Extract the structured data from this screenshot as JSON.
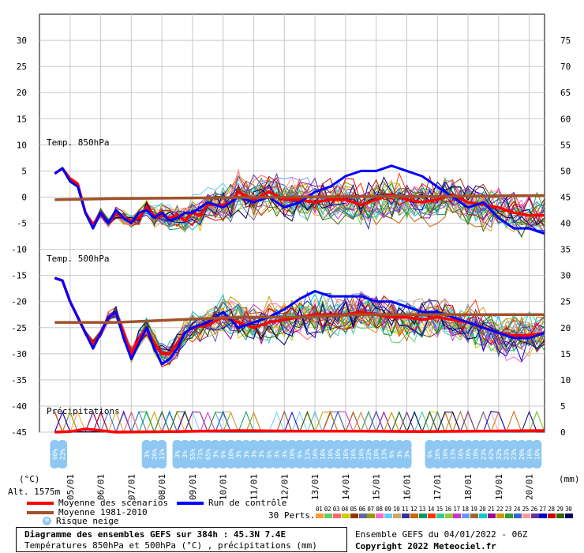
{
  "chart_data": {
    "type": "line",
    "title": "Diagramme des ensembles GEFS sur 384h : 45.3N 7.4E",
    "subtitle": "Températures 850hPa et 500hPa (°C) , précipitations (mm)",
    "left_axis": {
      "unit": "(°C)",
      "ticks": [
        30,
        25,
        20,
        15,
        10,
        5,
        0,
        -5,
        -10,
        -15,
        -20,
        -25,
        -30,
        -35,
        -40,
        -45
      ],
      "ylim": [
        -45,
        30
      ]
    },
    "right_axis": {
      "unit": "(mm)",
      "ticks": [
        75,
        70,
        65,
        60,
        55,
        50,
        45,
        40,
        35,
        30,
        25,
        20,
        15,
        10,
        5,
        0
      ]
    },
    "x_tick_labels": [
      "05/01",
      "06/01",
      "07/01",
      "08/01",
      "09/01",
      "10/01",
      "11/01",
      "12/01",
      "13/01",
      "14/01",
      "15/01",
      "16/01",
      "17/01",
      "18/01",
      "19/01",
      "20/01"
    ],
    "panel_labels": {
      "t850": "Temp. 850hPa",
      "t500": "Temp. 500hPa",
      "precip": "Précipitations"
    },
    "altitude": "Alt. 1575m",
    "series": [
      {
        "name": "Moyenne des scénarios",
        "color": "#ff0000",
        "panel": "t850",
        "x": [
          0,
          0.25,
          0.5,
          0.75,
          1,
          1.25,
          1.5,
          1.75,
          2,
          2.25,
          2.5,
          2.75,
          3,
          3.25,
          3.5,
          3.75,
          4,
          4.25,
          4.5,
          4.75,
          5,
          5.25,
          5.5,
          5.75,
          6,
          6.5,
          7,
          7.5,
          8,
          8.5,
          9,
          9.5,
          10,
          10.5,
          11,
          11.5,
          12,
          12.5,
          13,
          13.5,
          14,
          14.5,
          15,
          15.5,
          16
        ],
        "values": [
          4.5,
          5.5,
          3.5,
          2.5,
          -3,
          -5.5,
          -3,
          -5,
          -3,
          -4,
          -4.5,
          -4,
          -2,
          -4,
          -3.5,
          -4,
          -3.5,
          -4.5,
          -3,
          -3.5,
          -1.5,
          -1.5,
          -1.5,
          -1,
          1,
          -0.5,
          1,
          -0.5,
          -0.5,
          -1,
          -0.5,
          -0.5,
          -1.5,
          -0.5,
          0.5,
          -0.5,
          -1,
          -0.5,
          0.5,
          -1,
          -1.5,
          -2,
          -3,
          -3.5,
          -3.5
        ]
      },
      {
        "name": "Run de contrôle",
        "color": "#0000ff",
        "panel": "t850",
        "x": [
          0,
          0.25,
          0.5,
          0.75,
          1,
          1.25,
          1.5,
          1.75,
          2,
          2.25,
          2.5,
          2.75,
          3,
          3.25,
          3.5,
          3.75,
          4,
          4.25,
          4.5,
          4.75,
          5,
          5.5,
          6,
          6.5,
          7,
          7.5,
          8,
          8.5,
          9,
          9.5,
          10,
          10.5,
          11,
          11.5,
          12,
          12.5,
          13,
          13.5,
          14,
          14.5,
          15,
          15.5,
          16
        ],
        "values": [
          4.5,
          5.5,
          3,
          2,
          -3,
          -6,
          -3,
          -5,
          -2.5,
          -4,
          -5,
          -3,
          -2.5,
          -4,
          -3,
          -4.5,
          -4,
          -3,
          -3,
          -2,
          -1,
          -2,
          0,
          -1,
          0,
          -2,
          -1,
          1,
          2,
          4,
          5,
          5,
          6,
          5,
          4,
          2,
          0,
          -2,
          -1,
          -4,
          -6,
          -6,
          -7
        ]
      },
      {
        "name": "Moyenne 1981-2010",
        "color": "#a0522d",
        "panel": "t850",
        "x": [
          0,
          2,
          4,
          6,
          8,
          10,
          12,
          14,
          16
        ],
        "values": [
          -0.5,
          -0.3,
          -0.2,
          -0.1,
          0,
          0.1,
          0.1,
          0.2,
          0.3
        ]
      },
      {
        "name": "Moyenne des scénarios",
        "color": "#ff0000",
        "panel": "t500",
        "x": [
          0,
          0.25,
          0.5,
          0.75,
          1,
          1.25,
          1.5,
          1.75,
          2,
          2.25,
          2.5,
          2.75,
          3,
          3.25,
          3.5,
          3.75,
          4,
          4.25,
          4.5,
          5,
          5.5,
          6,
          6.5,
          7,
          7.5,
          8,
          8.5,
          9,
          9.5,
          10,
          10.5,
          11,
          11.5,
          12,
          12.5,
          13,
          13.5,
          14,
          14.5,
          15,
          15.5,
          16
        ],
        "values": [
          -15.5,
          -16,
          -20,
          -23,
          -26,
          -28,
          -26,
          -23,
          -22,
          -26,
          -30,
          -27,
          -25,
          -28,
          -30,
          -30,
          -28,
          -26,
          -25,
          -24.5,
          -23,
          -24,
          -25,
          -24,
          -23.5,
          -23,
          -22.5,
          -22.5,
          -22.5,
          -22,
          -22.5,
          -23,
          -23,
          -23.5,
          -23,
          -23.5,
          -24,
          -25,
          -26,
          -26.5,
          -26.5,
          -26
        ]
      },
      {
        "name": "Run de contrôle",
        "color": "#0000ff",
        "panel": "t500",
        "x": [
          0,
          0.25,
          0.5,
          0.75,
          1,
          1.25,
          1.5,
          1.75,
          2,
          2.25,
          2.5,
          2.75,
          3,
          3.25,
          3.5,
          3.75,
          4,
          4.25,
          4.5,
          5,
          5.5,
          6,
          6.5,
          7,
          7.5,
          8,
          8.5,
          9,
          9.5,
          10,
          10.5,
          11,
          11.5,
          12,
          12.5,
          13,
          13.5,
          14,
          14.5,
          15,
          15.5,
          16
        ],
        "values": [
          -15.5,
          -16,
          -20,
          -23,
          -26,
          -29,
          -26,
          -23,
          -22,
          -27,
          -31,
          -28,
          -25,
          -29,
          -32,
          -31,
          -29,
          -26,
          -25,
          -24,
          -22,
          -25,
          -24,
          -23,
          -21.5,
          -19.5,
          -18,
          -19,
          -19,
          -19,
          -20,
          -20,
          -21,
          -22,
          -22,
          -23,
          -24,
          -25,
          -26,
          -27,
          -27,
          -26
        ]
      },
      {
        "name": "Moyenne 1981-2010",
        "color": "#a0522d",
        "panel": "t500",
        "x": [
          0,
          2,
          4,
          6,
          8,
          10,
          12,
          14,
          16
        ],
        "values": [
          -24,
          -24,
          -23.5,
          -23,
          -23,
          -22.5,
          -22.5,
          -22.5,
          -22.5
        ]
      },
      {
        "name": "Moyenne des scénarios",
        "color": "#ff0000",
        "panel": "precip",
        "x": [
          0,
          0.5,
          1,
          2,
          4,
          6,
          8,
          10,
          12,
          14,
          16
        ],
        "values": [
          0,
          0.1,
          0.6,
          0,
          0.1,
          0.3,
          0.2,
          0.2,
          0.1,
          0.2,
          0.3
        ]
      }
    ],
    "snow_risk": [
      {
        "x": 0.5,
        "label": "90%"
      },
      {
        "x": 0.75,
        "label": "23%"
      },
      {
        "x": 3.5,
        "label": "3%"
      },
      {
        "x": 3.75,
        "label": "26%"
      },
      {
        "x": 4,
        "label": "11%"
      },
      {
        "x": 4.5,
        "label": "3%"
      },
      {
        "x": 4.75,
        "label": "3%"
      },
      {
        "x": 5,
        "label": "55%"
      },
      {
        "x": 5.25,
        "label": "71%"
      },
      {
        "x": 5.5,
        "label": "65%"
      },
      {
        "x": 5.75,
        "label": "3%"
      },
      {
        "x": 6,
        "label": "6%"
      },
      {
        "x": 6.25,
        "label": "10%"
      },
      {
        "x": 6.5,
        "label": "3%"
      },
      {
        "x": 6.75,
        "label": "3%"
      },
      {
        "x": 7,
        "label": "3%"
      },
      {
        "x": 7.25,
        "label": "3%"
      },
      {
        "x": 7.5,
        "label": "6%"
      },
      {
        "x": 7.75,
        "label": "3%"
      },
      {
        "x": 8,
        "label": "3%"
      },
      {
        "x": 8.25,
        "label": "10%"
      },
      {
        "x": 8.5,
        "label": "6%"
      },
      {
        "x": 8.75,
        "label": "13%"
      },
      {
        "x": 9,
        "label": "16%"
      },
      {
        "x": 9.25,
        "label": "10%"
      },
      {
        "x": 9.5,
        "label": "10%"
      },
      {
        "x": 9.75,
        "label": "10%"
      },
      {
        "x": 10,
        "label": "16%"
      },
      {
        "x": 10.25,
        "label": "16%"
      },
      {
        "x": 10.5,
        "label": "16%"
      },
      {
        "x": 10.75,
        "label": "23%"
      },
      {
        "x": 11,
        "label": "10%"
      },
      {
        "x": 11.25,
        "label": "13%"
      },
      {
        "x": 11.5,
        "label": "6%"
      },
      {
        "x": 11.75,
        "label": "3%"
      },
      {
        "x": 12,
        "label": "3%"
      },
      {
        "x": 12.75,
        "label": "6%"
      },
      {
        "x": 13,
        "label": "16%"
      },
      {
        "x": 13.25,
        "label": "10%"
      },
      {
        "x": 13.5,
        "label": "13%"
      },
      {
        "x": 13.75,
        "label": "16%"
      },
      {
        "x": 14,
        "label": "16%"
      },
      {
        "x": 14.25,
        "label": "10%"
      },
      {
        "x": 14.5,
        "label": "23%"
      },
      {
        "x": 14.75,
        "label": "42%"
      },
      {
        "x": 15,
        "label": "32%"
      },
      {
        "x": 15.25,
        "label": "23%"
      },
      {
        "x": 15.5,
        "label": "23%"
      },
      {
        "x": 15.75,
        "label": "20%"
      },
      {
        "x": 16,
        "label": "16%"
      },
      {
        "x": 16.25,
        "label": "10%"
      }
    ]
  },
  "legend": {
    "mean_label": "Moyenne des scénarios",
    "control_label": "Run de contrôle",
    "climate_label": "Moyenne 1981-2010",
    "snow_label": "Risque neige",
    "perts_label": "30 Perts.",
    "colors": {
      "mean": "#ff0000",
      "control": "#0000ff",
      "climate": "#a0522d",
      "snow": "#8ec8f2"
    }
  },
  "perts": {
    "numbers": [
      "01",
      "02",
      "03",
      "04",
      "05",
      "06",
      "07",
      "08",
      "09",
      "10",
      "11",
      "12",
      "13",
      "14",
      "15",
      "16",
      "17",
      "18",
      "19",
      "20",
      "21",
      "22",
      "23",
      "24",
      "25",
      "26",
      "27",
      "28",
      "29",
      "30"
    ],
    "colors": [
      "#ff9933",
      "#66cc66",
      "#ff6666",
      "#cccc00",
      "#993300",
      "#666699",
      "#999900",
      "#ff66cc",
      "#66ccff",
      "#ccaa66",
      "#333399",
      "#cc6600",
      "#009966",
      "#ff3300",
      "#33cc99",
      "#99cc33",
      "#cc33cc",
      "#6699ff",
      "#996633",
      "#00cccc",
      "#990099",
      "#cc9900",
      "#339933",
      "#3366cc",
      "#ff9999",
      "#663399",
      "#0000cc",
      "#cc0000",
      "#336600",
      "#000066"
    ]
  },
  "footer": {
    "title": "Diagramme des ensembles GEFS sur 384h : 45.3N 7.4E",
    "subtitle": "Températures 850hPa et 500hPa (°C) , précipitations (mm)",
    "run_info": "Ensemble GEFS du 04/01/2022 - 06Z",
    "copyright": "Copyright 2022 Meteociel.fr"
  }
}
